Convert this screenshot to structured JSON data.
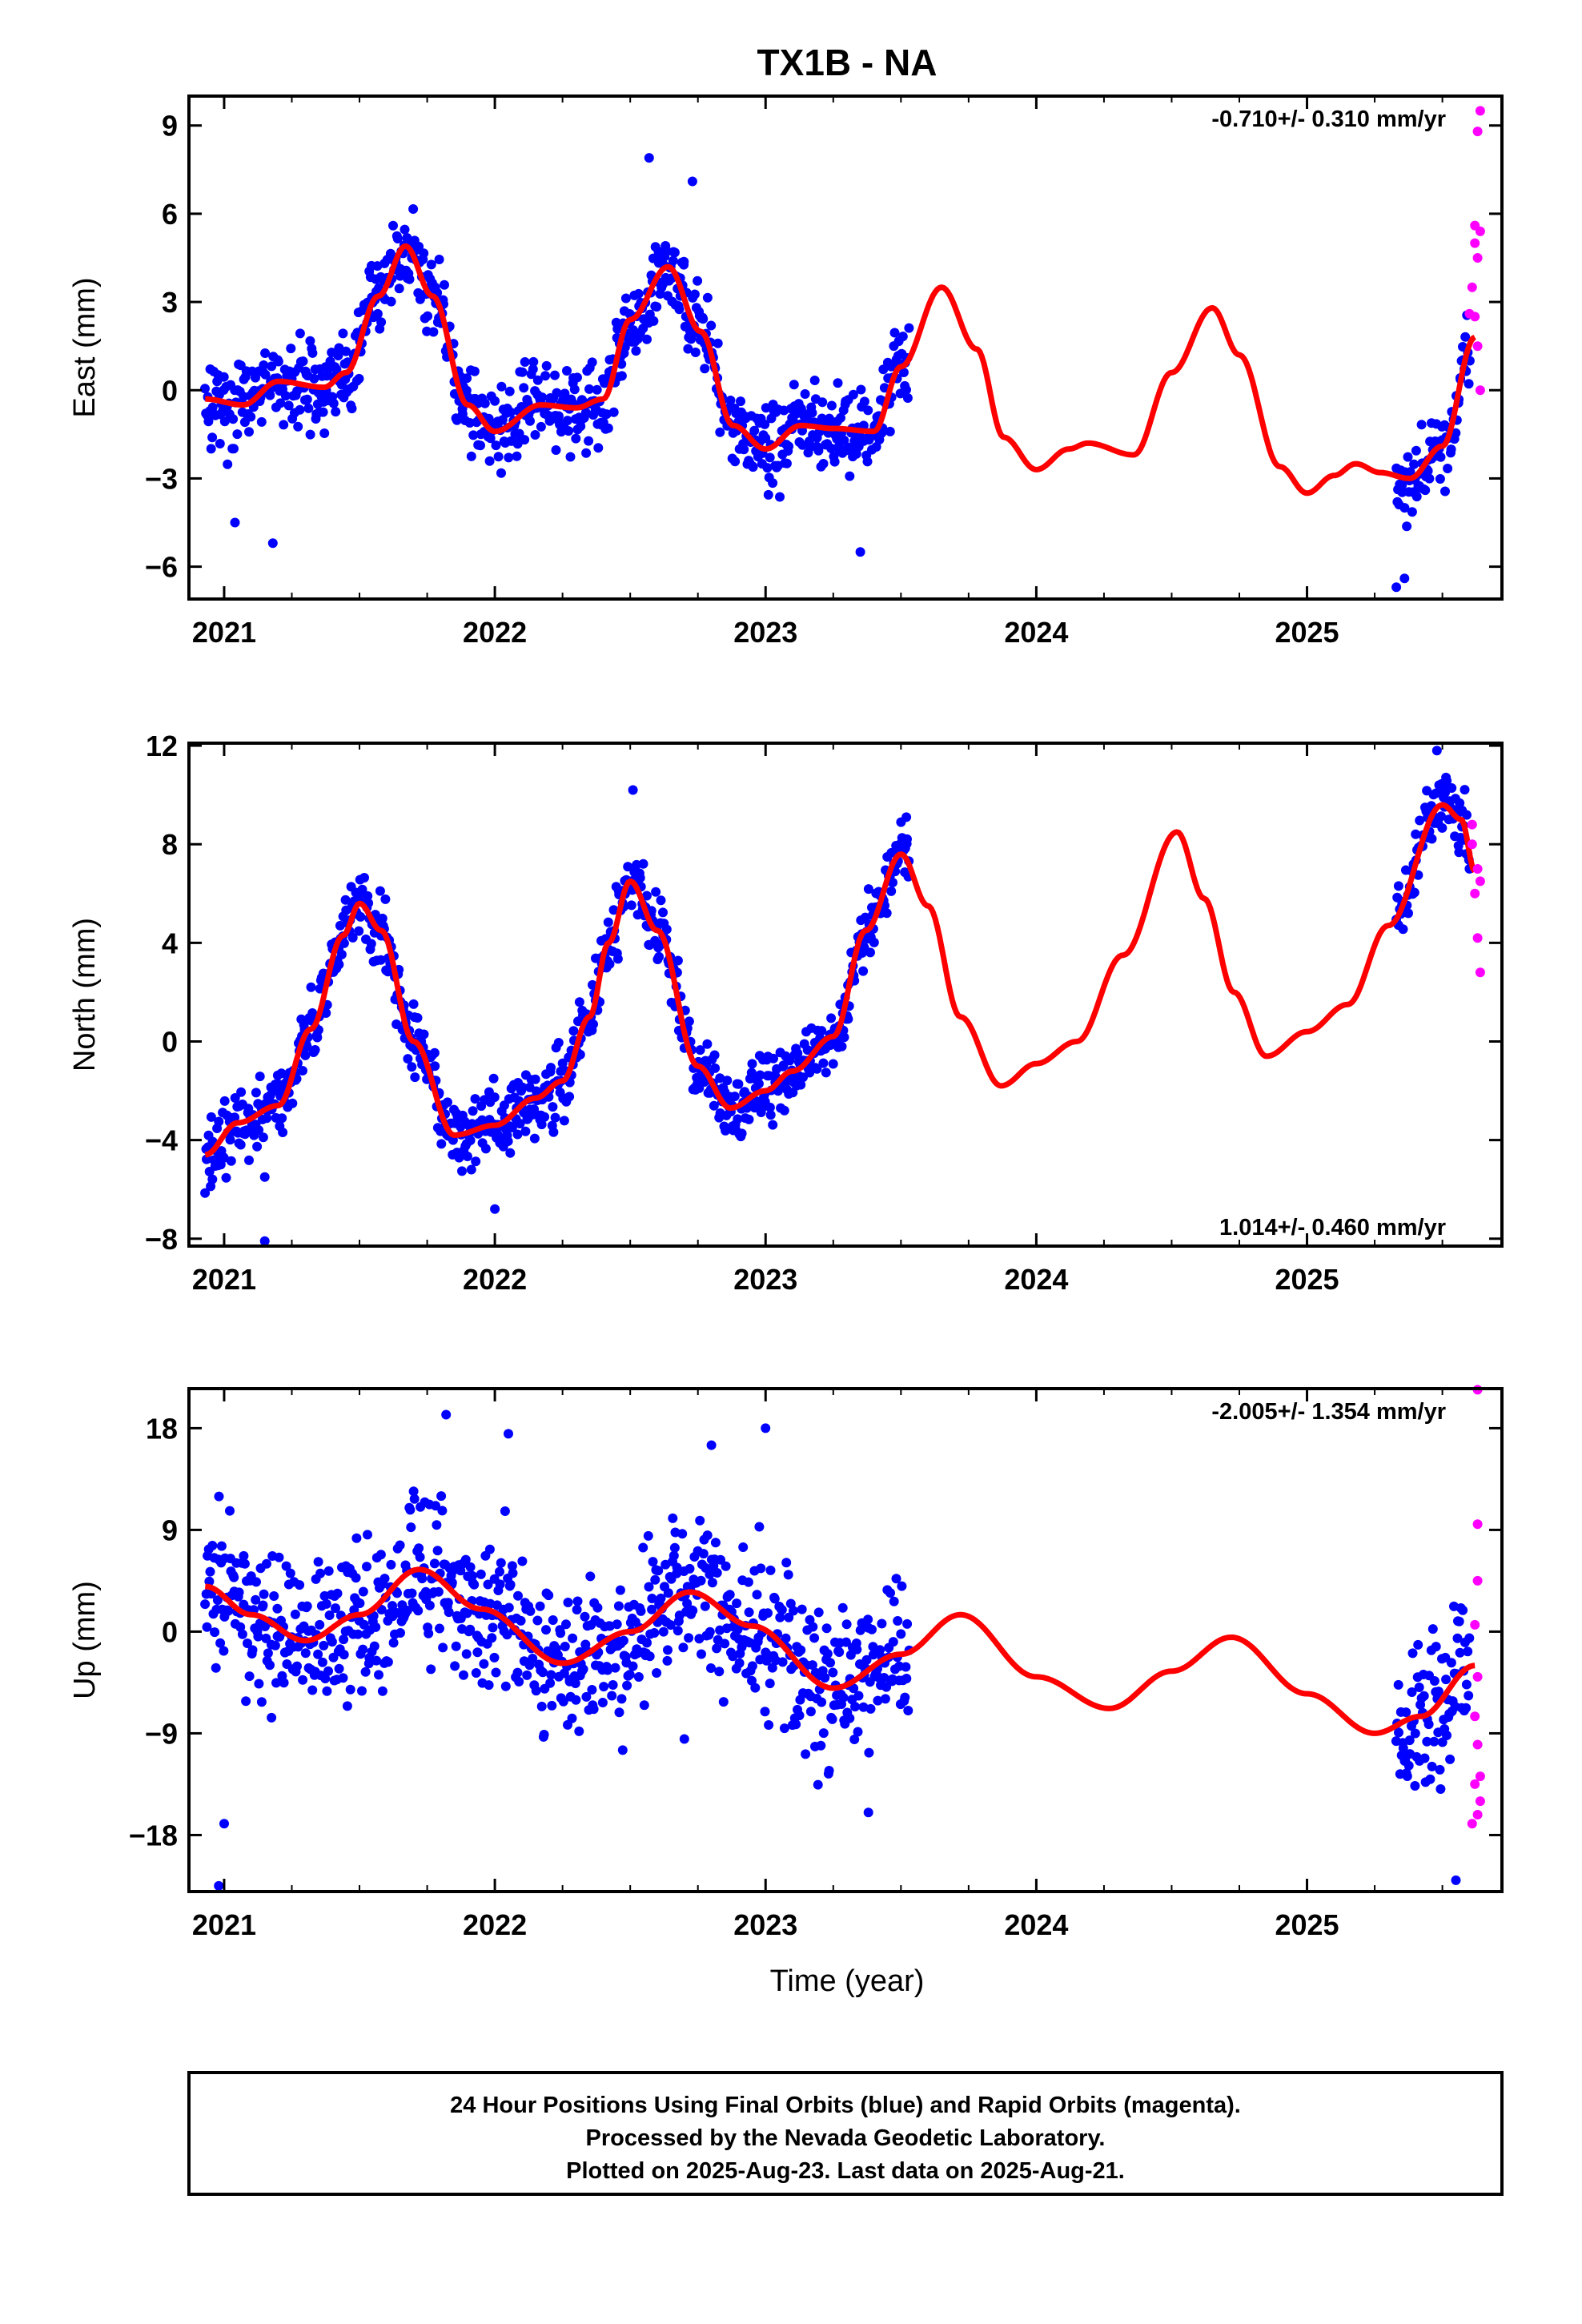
{
  "title": "TX1B - NA",
  "xlabel": "Time (year)",
  "footer": {
    "line1": "24 Hour Positions Using Final Orbits (blue) and Rapid Orbits (magenta).",
    "line2": "Processed by the Nevada Geodetic Laboratory.",
    "line3": "Plotted on 2025-Aug-23. Last data on 2025-Aug-21."
  },
  "colors": {
    "final": "#0000ff",
    "rapid": "#ff00ff",
    "model": "#ff0000",
    "axis": "#000000",
    "background": "#ffffff"
  },
  "chart_data": [
    {
      "type": "scatter",
      "ylabel": "East (mm)",
      "rate": "-0.710+/- 0.310 mm/yr",
      "rate_position": "top-right",
      "xlim": [
        2020.87,
        2025.72
      ],
      "ylim": [
        -7.1,
        10.0
      ],
      "xticks": [
        2021,
        2022,
        2023,
        2024,
        2025
      ],
      "yticks": [
        -6,
        -3,
        0,
        3,
        6,
        9
      ],
      "final_segments": [
        [
          2020.93,
          2023.53
        ],
        [
          2025.33,
          2025.6
        ]
      ],
      "model_curve": [
        [
          2020.93,
          -0.3
        ],
        [
          2021.07,
          -0.5
        ],
        [
          2021.2,
          0.3
        ],
        [
          2021.37,
          0.1
        ],
        [
          2021.45,
          0.6
        ],
        [
          2021.57,
          3.2
        ],
        [
          2021.67,
          4.9
        ],
        [
          2021.77,
          3.2
        ],
        [
          2021.9,
          -0.5
        ],
        [
          2022.0,
          -1.4
        ],
        [
          2022.17,
          -0.5
        ],
        [
          2022.3,
          -0.6
        ],
        [
          2022.4,
          -0.3
        ],
        [
          2022.5,
          2.4
        ],
        [
          2022.64,
          4.2
        ],
        [
          2022.76,
          2.0
        ],
        [
          2022.88,
          -1.2
        ],
        [
          2023.0,
          -2.0
        ],
        [
          2023.13,
          -1.2
        ],
        [
          2023.25,
          -1.3
        ],
        [
          2023.4,
          -1.4
        ],
        [
          2023.5,
          0.8
        ],
        [
          2023.65,
          3.5
        ],
        [
          2023.78,
          1.4
        ],
        [
          2023.88,
          -1.6
        ],
        [
          2024.0,
          -2.7
        ],
        [
          2024.12,
          -2.0
        ],
        [
          2024.19,
          -1.8
        ],
        [
          2024.36,
          -2.2
        ],
        [
          2024.5,
          0.6
        ],
        [
          2024.65,
          2.8
        ],
        [
          2024.75,
          1.2
        ],
        [
          2024.9,
          -2.6
        ],
        [
          2025.0,
          -3.5
        ],
        [
          2025.1,
          -2.9
        ],
        [
          2025.18,
          -2.5
        ],
        [
          2025.27,
          -2.8
        ],
        [
          2025.38,
          -3.0
        ],
        [
          2025.5,
          -1.9
        ],
        [
          2025.62,
          1.8
        ]
      ],
      "rapid_points": [
        [
          2025.64,
          9.5
        ],
        [
          2025.63,
          8.8
        ],
        [
          2025.62,
          5.6
        ],
        [
          2025.64,
          5.4
        ],
        [
          2025.62,
          5.0
        ],
        [
          2025.63,
          4.5
        ],
        [
          2025.61,
          3.5
        ],
        [
          2025.62,
          2.5
        ],
        [
          2025.63,
          1.5
        ],
        [
          2025.64,
          0.0
        ],
        [
          2025.6,
          2.6
        ]
      ],
      "noise_mm": 1.0,
      "outliers": [
        [
          2021.04,
          -4.5
        ],
        [
          2021.18,
          -5.2
        ],
        [
          2022.57,
          7.9
        ],
        [
          2022.73,
          7.1
        ],
        [
          2023.35,
          -5.5
        ],
        [
          2025.33,
          -6.7
        ],
        [
          2025.36,
          -6.4
        ]
      ],
      "n_points": 900
    },
    {
      "type": "scatter",
      "ylabel": "North (mm)",
      "rate": "1.014+/- 0.460 mm/yr",
      "rate_position": "bottom-right",
      "xlim": [
        2020.87,
        2025.72
      ],
      "ylim": [
        -8.3,
        12.1
      ],
      "xticks": [
        2021,
        2022,
        2023,
        2024,
        2025
      ],
      "yticks": [
        -8,
        -4,
        0,
        4,
        8,
        12
      ],
      "final_segments": [
        [
          2020.93,
          2023.53
        ],
        [
          2025.33,
          2025.6
        ]
      ],
      "model_curve": [
        [
          2020.93,
          -4.6
        ],
        [
          2021.05,
          -3.3
        ],
        [
          2021.2,
          -2.6
        ],
        [
          2021.32,
          0.5
        ],
        [
          2021.44,
          4.3
        ],
        [
          2021.5,
          5.6
        ],
        [
          2021.58,
          4.5
        ],
        [
          2021.7,
          0.0
        ],
        [
          2021.85,
          -3.8
        ],
        [
          2022.0,
          -3.4
        ],
        [
          2022.15,
          -2.3
        ],
        [
          2022.25,
          -1.6
        ],
        [
          2022.35,
          1.0
        ],
        [
          2022.42,
          4.0
        ],
        [
          2022.5,
          6.5
        ],
        [
          2022.6,
          4.5
        ],
        [
          2022.75,
          -1.0
        ],
        [
          2022.87,
          -2.7
        ],
        [
          2023.0,
          -2.0
        ],
        [
          2023.1,
          -1.2
        ],
        [
          2023.25,
          0.2
        ],
        [
          2023.37,
          4.5
        ],
        [
          2023.5,
          7.6
        ],
        [
          2023.6,
          5.5
        ],
        [
          2023.72,
          1.0
        ],
        [
          2023.87,
          -1.8
        ],
        [
          2024.0,
          -0.9
        ],
        [
          2024.15,
          0.0
        ],
        [
          2024.32,
          3.5
        ],
        [
          2024.52,
          8.5
        ],
        [
          2024.62,
          5.8
        ],
        [
          2024.73,
          2.0
        ],
        [
          2024.85,
          -0.6
        ],
        [
          2025.0,
          0.4
        ],
        [
          2025.15,
          1.5
        ],
        [
          2025.3,
          4.7
        ],
        [
          2025.5,
          9.6
        ],
        [
          2025.57,
          9.0
        ],
        [
          2025.62,
          6.9
        ]
      ],
      "rapid_points": [
        [
          2025.61,
          8.8
        ],
        [
          2025.63,
          7.0
        ],
        [
          2025.64,
          6.5
        ],
        [
          2025.62,
          6.0
        ],
        [
          2025.63,
          4.2
        ],
        [
          2025.64,
          2.8
        ],
        [
          2025.61,
          8.0
        ]
      ],
      "noise_mm": 1.0,
      "outliers": [
        [
          2021.15,
          -8.1
        ],
        [
          2021.15,
          -5.5
        ],
        [
          2022.51,
          10.2
        ],
        [
          2022.0,
          -6.8
        ],
        [
          2023.52,
          9.1
        ],
        [
          2025.48,
          11.8
        ]
      ],
      "n_points": 900
    },
    {
      "type": "scatter",
      "ylabel": "Up (mm)",
      "rate": "-2.005+/- 1.354 mm/yr",
      "rate_position": "top-right",
      "xlim": [
        2020.87,
        2025.72
      ],
      "ylim": [
        -23.0,
        21.5
      ],
      "xticks": [
        2021,
        2022,
        2023,
        2024,
        2025
      ],
      "yticks": [
        -18,
        -9,
        0,
        9,
        18
      ],
      "final_segments": [
        [
          2020.93,
          2023.53
        ],
        [
          2025.33,
          2025.6
        ]
      ],
      "model_curve": [
        [
          2020.93,
          4.0
        ],
        [
          2021.1,
          1.5
        ],
        [
          2021.3,
          -0.8
        ],
        [
          2021.5,
          1.5
        ],
        [
          2021.72,
          5.5
        ],
        [
          2021.95,
          2.0
        ],
        [
          2022.25,
          -2.8
        ],
        [
          2022.5,
          0.0
        ],
        [
          2022.72,
          3.5
        ],
        [
          2022.95,
          0.5
        ],
        [
          2023.25,
          -5.0
        ],
        [
          2023.5,
          -2.0
        ],
        [
          2023.72,
          1.5
        ],
        [
          2024.0,
          -4.0
        ],
        [
          2024.27,
          -6.8
        ],
        [
          2024.5,
          -3.5
        ],
        [
          2024.72,
          -0.5
        ],
        [
          2025.0,
          -5.5
        ],
        [
          2025.25,
          -9.0
        ],
        [
          2025.42,
          -7.5
        ],
        [
          2025.62,
          -3.0
        ]
      ],
      "rapid_points": [
        [
          2025.63,
          22.0
        ],
        [
          2025.63,
          9.5
        ],
        [
          2025.63,
          4.5
        ],
        [
          2025.62,
          0.6
        ],
        [
          2025.63,
          -4.0
        ],
        [
          2025.62,
          -7.5
        ],
        [
          2025.63,
          -10.0
        ],
        [
          2025.62,
          -13.5
        ],
        [
          2025.64,
          -15.0
        ],
        [
          2025.63,
          -16.2
        ],
        [
          2025.61,
          -17.0
        ],
        [
          2025.64,
          -12.8
        ]
      ],
      "noise_mm": 4.8,
      "outliers": [
        [
          2020.98,
          -22.5
        ],
        [
          2021.0,
          -17.0
        ],
        [
          2021.82,
          19.2
        ],
        [
          2022.05,
          17.5
        ],
        [
          2022.8,
          16.5
        ],
        [
          2023.0,
          18.0
        ],
        [
          2023.38,
          -16.0
        ],
        [
          2022.7,
          -9.5
        ],
        [
          2025.55,
          -22.0
        ]
      ],
      "n_points": 900
    }
  ]
}
